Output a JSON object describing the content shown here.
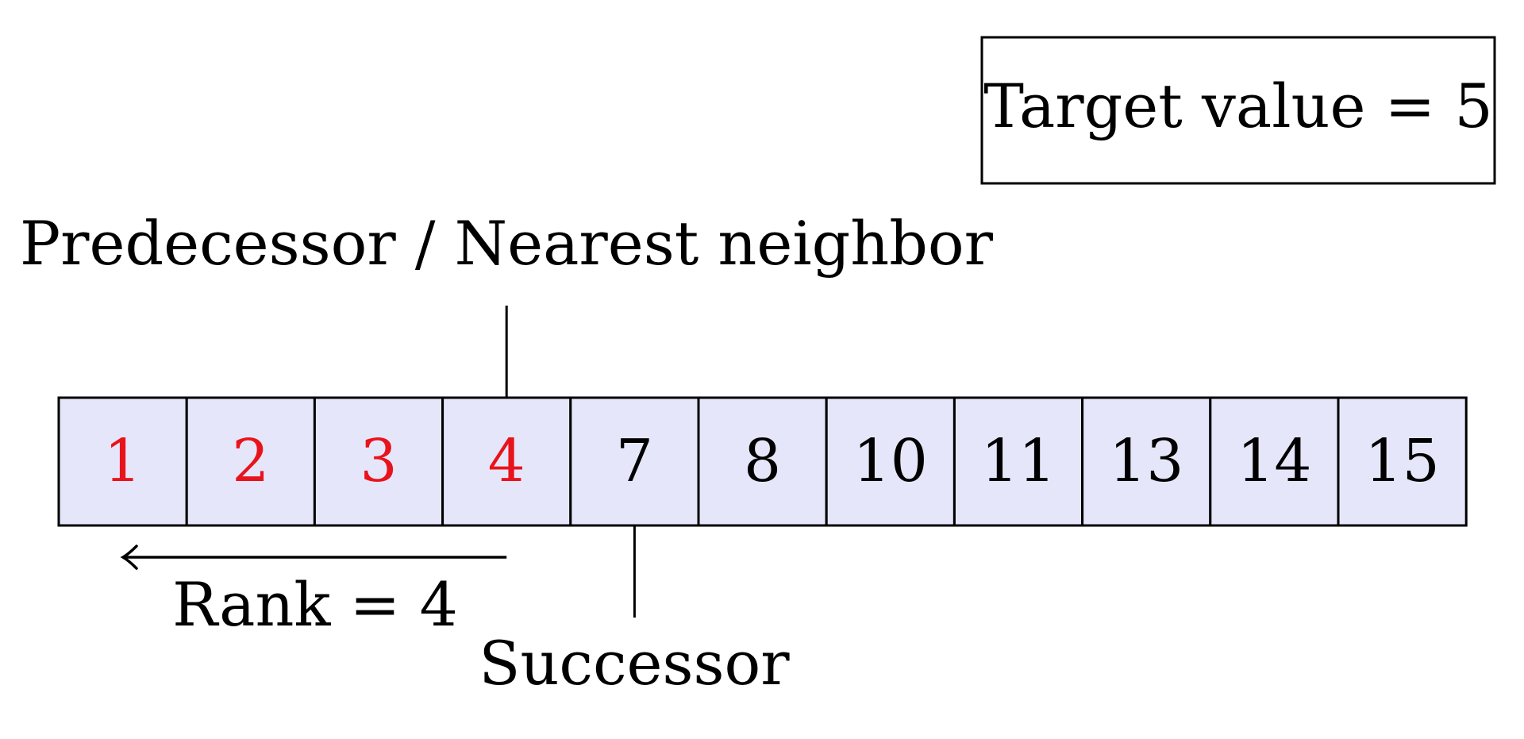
{
  "target_box": {
    "text": "Target value = 5"
  },
  "labels": {
    "predecessor": "Predecessor / Nearest neighbor",
    "rank": "Rank = 4",
    "successor": "Successor"
  },
  "array": {
    "cells": [
      {
        "value": "1",
        "highlighted": true
      },
      {
        "value": "2",
        "highlighted": true
      },
      {
        "value": "3",
        "highlighted": true
      },
      {
        "value": "4",
        "highlighted": true
      },
      {
        "value": "7",
        "highlighted": false
      },
      {
        "value": "8",
        "highlighted": false
      },
      {
        "value": "10",
        "highlighted": false
      },
      {
        "value": "11",
        "highlighted": false
      },
      {
        "value": "13",
        "highlighted": false
      },
      {
        "value": "14",
        "highlighted": false
      },
      {
        "value": "15",
        "highlighted": false
      }
    ],
    "predecessor_index": 3,
    "successor_index": 4,
    "rank": 4
  },
  "colors": {
    "cell_fill": "#e6e6fa",
    "highlight_text": "#e8141b",
    "normal_text": "#000000",
    "stroke": "#000000"
  }
}
